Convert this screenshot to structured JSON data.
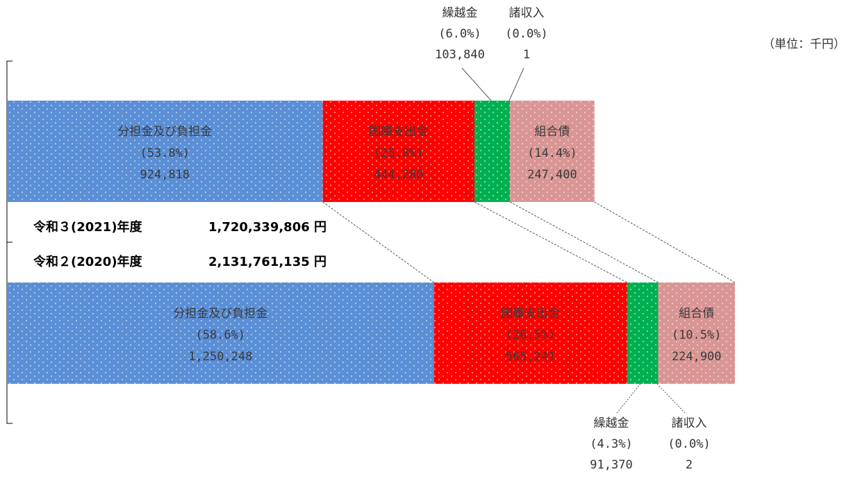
{
  "unit_label": "（単位：千円）",
  "chart_data": {
    "type": "bar",
    "stacked": true,
    "orientation": "horizontal",
    "legend": "none",
    "rows": [
      {
        "label": "令和３(2021)年度",
        "total": "1,720,339,806 円",
        "segments": [
          {
            "name": "分担金及び負担金",
            "pct": "(53.8%)",
            "value": 924818,
            "value_text": "924,818",
            "color": "#5b8fd6"
          },
          {
            "name": "国庫支出金",
            "pct": "(25.8%)",
            "value": 444280,
            "value_text": "444,280",
            "color": "#ff0000"
          },
          {
            "name": "繰越金",
            "pct": "(6.0%)",
            "value": 103840,
            "value_text": "103,840",
            "color": "#00b050"
          },
          {
            "name": "諸収入",
            "pct": "(0.0%)",
            "value": 1,
            "value_text": "1",
            "color": "#00b050"
          },
          {
            "name": "組合債",
            "pct": "(14.4%)",
            "value": 247400,
            "value_text": "247,400",
            "color": "#d99694"
          }
        ]
      },
      {
        "label": "令和２(2020)年度",
        "total": "2,131,761,135 円",
        "segments": [
          {
            "name": "分担金及び負担金",
            "pct": "(58.6%)",
            "value": 1250248,
            "value_text": "1,250,248",
            "color": "#5b8fd6"
          },
          {
            "name": "国庫支出金",
            "pct": "(26.5%)",
            "value": 565241,
            "value_text": "565,241",
            "color": "#ff0000"
          },
          {
            "name": "繰越金",
            "pct": "(4.3%)",
            "value": 91370,
            "value_text": "91,370",
            "color": "#00b050"
          },
          {
            "name": "諸収入",
            "pct": "(0.0%)",
            "value": 2,
            "value_text": "2",
            "color": "#00b050"
          },
          {
            "name": "組合債",
            "pct": "(10.5%)",
            "value": 224900,
            "value_text": "224,900",
            "color": "#d99694"
          }
        ]
      }
    ]
  }
}
